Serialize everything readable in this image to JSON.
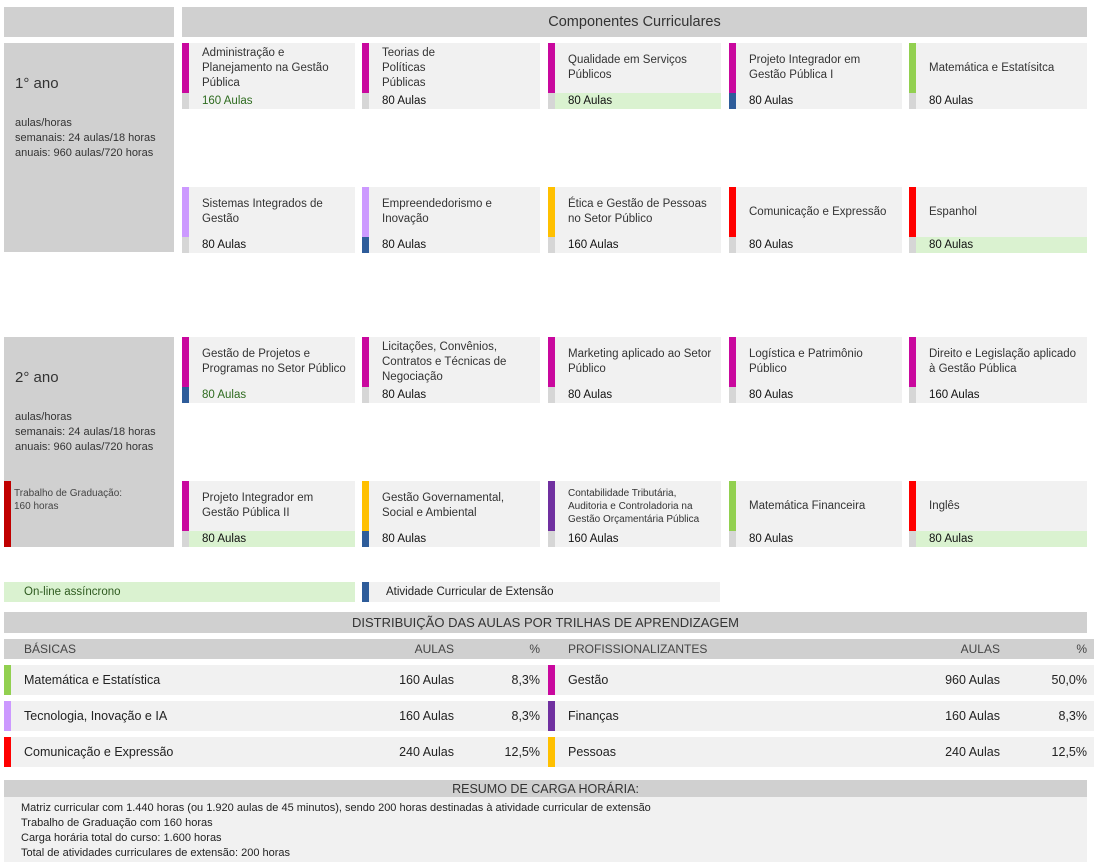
{
  "header": {
    "title": "Componentes Curriculares"
  },
  "colors": {
    "gestao": "#c9089e",
    "matematica": "#92d050",
    "tecnologia": "#cc99ff",
    "pessoas": "#ffc000",
    "comunicacao": "#ff0000",
    "financas": "#7030a0",
    "extensao": "#2e5c9a",
    "online": "#daf2d0"
  },
  "years": [
    {
      "label": "1° ano",
      "info": [
        "aulas/horas",
        "semanais: 24 aulas/18 horas",
        "anuais: 960 aulas/720 horas"
      ],
      "rows": [
        [
          {
            "title": "Administração e Planejamento na Gestão Pública",
            "aulas": "160 Aulas",
            "color": "#c9089e",
            "ext": false,
            "online": false,
            "greentext": true
          },
          {
            "title": "Teorias de Políticas Públicas",
            "aulas": "80 Aulas",
            "color": "#c9089e",
            "ext": false,
            "online": false,
            "narrow": true
          },
          {
            "title": "Qualidade em Serviços Públicos",
            "aulas": "80 Aulas",
            "color": "#c9089e",
            "ext": false,
            "online": true
          },
          {
            "title": "Projeto Integrador em Gestão Pública I",
            "aulas": "80 Aulas",
            "color": "#c9089e",
            "ext": true,
            "online": false
          },
          {
            "title": "Matemática e Estatísitca",
            "aulas": "80 Aulas",
            "color": "#92d050",
            "ext": false,
            "online": false
          }
        ],
        [
          {
            "title": "Sistemas Integrados de Gestão",
            "aulas": "80 Aulas",
            "color": "#cc99ff",
            "ext": false,
            "online": false
          },
          {
            "title": "Empreendedorismo e Inovação",
            "aulas": "80 Aulas",
            "color": "#cc99ff",
            "ext": true,
            "online": false
          },
          {
            "title": "Ética e Gestão de Pessoas no Setor Público",
            "aulas": "160 Aulas",
            "color": "#ffc000",
            "ext": false,
            "online": false
          },
          {
            "title": "Comunicação e Expressão",
            "aulas": "80 Aulas",
            "color": "#ff0000",
            "ext": false,
            "online": false
          },
          {
            "title": "Espanhol",
            "aulas": "80 Aulas",
            "color": "#ff0000",
            "ext": false,
            "online": true
          }
        ]
      ]
    },
    {
      "label": "2° ano",
      "info": [
        "aulas/horas",
        "semanais: 24 aulas/18 horas",
        "anuais: 960 aulas/720 horas"
      ],
      "tg": [
        "Trabalho de Graduação:",
        "160 horas"
      ],
      "rows": [
        [
          {
            "title": "Gestão de Projetos e Programas no Setor Público",
            "aulas": "80 Aulas",
            "color": "#c9089e",
            "ext": true,
            "online": false,
            "greentext": true
          },
          {
            "title": "Licitações, Convênios, Contratos e Técnicas de Negociação",
            "aulas": "80 Aulas",
            "color": "#c9089e",
            "ext": false,
            "online": false
          },
          {
            "title": "Marketing aplicado ao Setor Público",
            "aulas": "80 Aulas",
            "color": "#c9089e",
            "ext": false,
            "online": false
          },
          {
            "title": "Logística e Patrimônio Público",
            "aulas": "80 Aulas",
            "color": "#c9089e",
            "ext": false,
            "online": false
          },
          {
            "title": "Direito e Legislação aplicado à Gestão Pública",
            "aulas": "160 Aulas",
            "color": "#c9089e",
            "ext": false,
            "online": false
          }
        ],
        [
          {
            "title": "Projeto Integrador em Gestão Pública II",
            "aulas": "80 Aulas",
            "color": "#c9089e",
            "ext": false,
            "online": true
          },
          {
            "title": "Gestão Governamental, Social e Ambiental",
            "aulas": "80 Aulas",
            "color": "#ffc000",
            "ext": true,
            "online": false
          },
          {
            "title": "Contabilidade Tributária, Auditoria e Controladoria na Gestão Orçamentária Pública",
            "aulas": "160 Aulas",
            "color": "#7030a0",
            "ext": false,
            "online": false,
            "small": true
          },
          {
            "title": "Matemática Financeira",
            "aulas": "80 Aulas",
            "color": "#92d050",
            "ext": false,
            "online": false
          },
          {
            "title": "Inglês",
            "aulas": "80 Aulas",
            "color": "#ff0000",
            "ext": false,
            "online": true
          }
        ]
      ]
    }
  ],
  "legend": {
    "online": "On-line assíncrono",
    "extensao": "Atividade Curricular de Extensão"
  },
  "distribution": {
    "title": "DISTRIBUIÇÃO DAS AULAS POR TRILHAS DE APRENDIZAGEM",
    "basicas": {
      "header": "BÁSICAS",
      "aulas_header": "AULAS",
      "pct_header": "%",
      "rows": [
        {
          "name": "Matemática e Estatística",
          "aulas": "160 Aulas",
          "pct": "8,3%",
          "color": "#92d050"
        },
        {
          "name": "Tecnologia, Inovação e IA",
          "aulas": "160 Aulas",
          "pct": "8,3%",
          "color": "#cc99ff"
        },
        {
          "name": "Comunicação e Expressão",
          "aulas": "240 Aulas",
          "pct": "12,5%",
          "color": "#ff0000"
        }
      ]
    },
    "prof": {
      "header": "PROFISSIONALIZANTES",
      "aulas_header": "AULAS",
      "pct_header": "%",
      "rows": [
        {
          "name": "Gestão",
          "aulas": "960 Aulas",
          "pct": "50,0%",
          "color": "#c9089e"
        },
        {
          "name": "Finanças",
          "aulas": "160 Aulas",
          "pct": "8,3%",
          "color": "#7030a0"
        },
        {
          "name": "Pessoas",
          "aulas": "240 Aulas",
          "pct": "12,5%",
          "color": "#ffc000"
        }
      ]
    }
  },
  "summary": {
    "title": "RESUMO DE CARGA HORÁRIA:",
    "lines": [
      "Matriz curricular com 1.440 horas (ou 1.920 aulas de 45 minutos), sendo 200 horas destinadas à atividade curricular de extensão",
      "Trabalho de Graduação com 160 horas",
      "Carga horária total do curso: 1.600 horas",
      "Total de atividades curriculares de extensão: 200 horas"
    ]
  }
}
